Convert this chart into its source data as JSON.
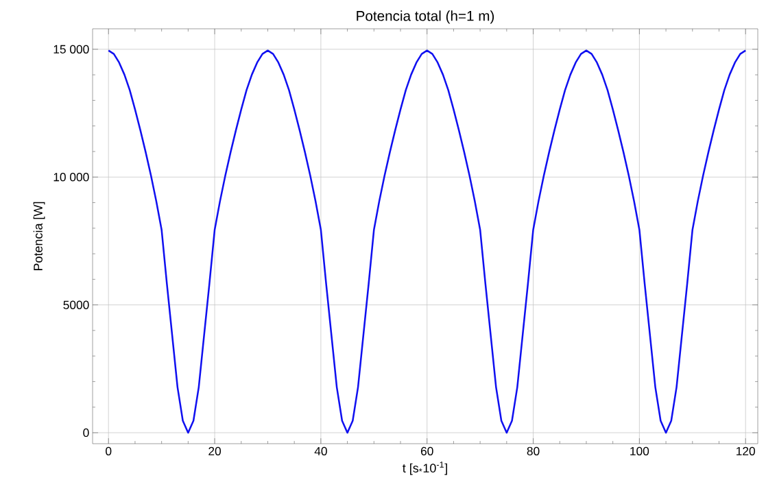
{
  "chart_data": {
    "type": "line",
    "title": "Potencia total (h=1 m)",
    "xlabel": "t [s$_{*}$10$^{-1}$]",
    "ylabel": "Potencia [W]",
    "x": [
      0,
      1,
      2,
      3,
      4,
      5,
      6,
      7,
      8,
      9,
      10,
      11,
      13,
      14,
      15,
      16,
      17,
      19,
      20,
      21,
      22,
      23,
      24,
      25,
      26,
      27,
      28,
      29,
      30,
      31,
      32,
      33,
      34,
      35,
      36,
      37,
      38,
      39,
      40,
      41,
      43,
      44,
      45,
      46,
      47,
      49,
      50,
      51,
      52,
      53,
      54,
      55,
      56,
      57,
      58,
      59,
      60,
      61,
      62,
      63,
      64,
      65,
      66,
      67,
      68,
      69,
      70,
      71,
      73,
      74,
      75,
      76,
      77,
      79,
      80,
      81,
      82,
      83,
      84,
      85,
      86,
      87,
      88,
      89,
      90,
      91,
      92,
      93,
      94,
      95,
      96,
      97,
      98,
      99,
      100,
      101,
      103,
      104,
      105,
      106,
      107,
      109,
      110,
      111,
      112,
      113,
      114,
      115,
      116,
      117,
      118,
      119,
      120
    ],
    "series": [
      {
        "color": "#1010f0",
        "values": [
          14950,
          14816,
          14480,
          14006,
          13400,
          12643,
          11832,
          10974,
          10060,
          9056,
          7940,
          5820,
          1780,
          470,
          0,
          470,
          1780,
          5820,
          7940,
          9056,
          10060,
          10974,
          11832,
          12643,
          13400,
          14006,
          14480,
          14816,
          14950,
          14816,
          14480,
          14006,
          13400,
          12643,
          11832,
          10974,
          10060,
          9056,
          7940,
          5820,
          1780,
          470,
          0,
          470,
          1780,
          5820,
          7940,
          9056,
          10060,
          10974,
          11832,
          12643,
          13400,
          14006,
          14480,
          14816,
          14950,
          14816,
          14480,
          14006,
          13400,
          12643,
          11832,
          10974,
          10060,
          9056,
          7940,
          5820,
          1780,
          470,
          0,
          470,
          1780,
          5820,
          7940,
          9056,
          10060,
          10974,
          11832,
          12643,
          13400,
          14006,
          14480,
          14816,
          14950,
          14816,
          14480,
          14006,
          13400,
          12643,
          11832,
          10974,
          10060,
          9056,
          7940,
          5820,
          1780,
          470,
          0,
          470,
          1780,
          5820,
          7940,
          9056,
          10060,
          10974,
          11832,
          12643,
          13400,
          14006,
          14480,
          14816,
          14950
        ]
      }
    ],
    "xlim": [
      -3,
      122.3
    ],
    "ylim": [
      -430,
      15800
    ],
    "xticks": [
      0,
      20,
      40,
      60,
      80,
      100,
      120
    ],
    "yticks": [
      0,
      5000,
      {
        "value": 10000,
        "label": "10 000"
      },
      {
        "value": 15000,
        "label": "15 000"
      }
    ],
    "grid": true
  }
}
